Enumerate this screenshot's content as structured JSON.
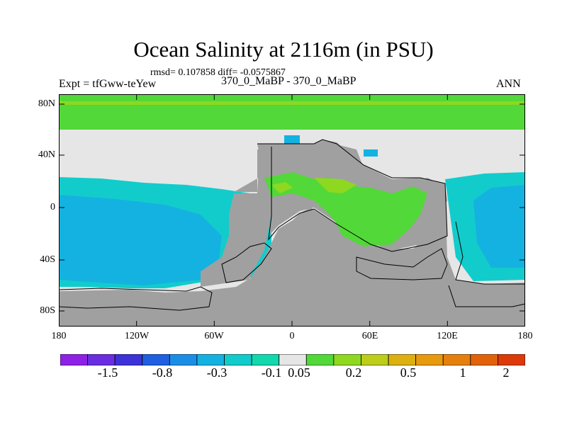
{
  "title": "Ocean Salinity at 2116m (in PSU)",
  "stats": "rmsd= 0.107858 diff= -0.0575867",
  "experiment": "Expt = tfGww-teYew",
  "cases": "370_0_MaBP - 370_0_MaBP",
  "season": "ANN",
  "y_axis": {
    "labels": [
      "80N",
      "40N",
      "0",
      "40S",
      "80S"
    ]
  },
  "x_axis": {
    "labels": [
      "180",
      "120W",
      "60W",
      "0",
      "60E",
      "120E",
      "180"
    ]
  },
  "colorbar": {
    "colors": [
      "#8f20e6",
      "#6a2ee0",
      "#3c32d8",
      "#1f5fe0",
      "#1a8ee6",
      "#14b2e0",
      "#12cccc",
      "#12d8ae",
      "#e6e6e6",
      "#52d838",
      "#8ed820",
      "#bccd1a",
      "#dcb010",
      "#e89a0e",
      "#e6800c",
      "#e2620a",
      "#dc3a08"
    ],
    "labels": [
      "-1.5",
      "-0.8",
      "-0.3",
      "-0.1",
      "0.05",
      "0.2",
      "0.5",
      "1",
      "2"
    ]
  },
  "map_colors": {
    "land": "#a0a0a0",
    "near_zero": "#e6e6e6",
    "positive": "#52d838",
    "positive_strong": "#8ed820",
    "negative": "#14b2e0",
    "negative_weak": "#12cccc",
    "negative_mid": "#1a8ee6"
  }
}
